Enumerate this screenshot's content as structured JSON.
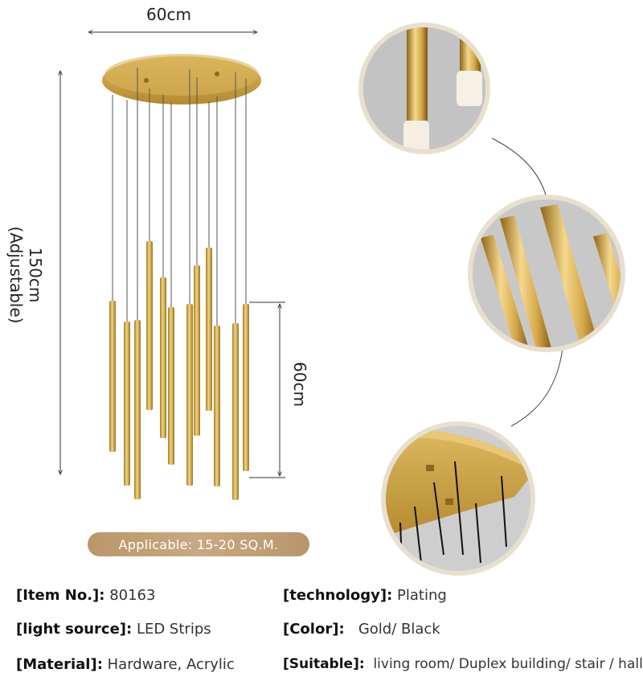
{
  "dimensions": {
    "width_label": "60cm",
    "height_label": "150cm\n(Adjustable)",
    "tube_label": "60cm"
  },
  "badge": "Applicable: 15-20 SQ.M.",
  "specs": [
    {
      "key": "[Item No.]:",
      "value": "80163"
    },
    {
      "key": "[technology]:",
      "value": "Plating"
    },
    {
      "key": "[light source]:",
      "value": "LED Strips"
    },
    {
      "key": "[Color]:",
      "value": "Gold/ Black"
    },
    {
      "key": "[Material]:",
      "value": "Hardware, Acrylic"
    },
    {
      "key": "[Suitable]:",
      "value": "living room/ Duplex building/ stair / hall"
    }
  ],
  "colors": {
    "gold": "#c9a24a",
    "badge": "#bf9f75",
    "frame": "#e7dccb"
  }
}
